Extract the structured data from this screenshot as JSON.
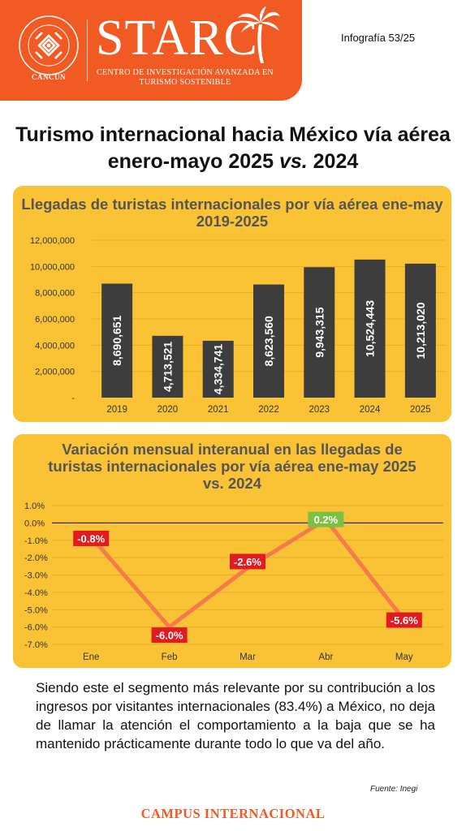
{
  "header": {
    "university_city": "CANCÚN",
    "brand_name": "STARC",
    "brand_subtitle": "CENTRO DE INVESTIGACIÓN AVANZADA EN TURISMO SOSTENIBLE",
    "infographic_number": "Infografía 53/25",
    "brand_color": "#f15a22"
  },
  "title_main": "Turismo internacional hacia México vía aérea enero-mayo 2025",
  "title_vs": "vs.",
  "title_year": "2024",
  "panel_color": "#f9c335",
  "chart_data": [
    {
      "type": "bar",
      "title": "Llegadas de turistas internacionales por vía aérea ene-may 2019-2025",
      "categories": [
        "2019",
        "2020",
        "2021",
        "2022",
        "2023",
        "2024",
        "2025"
      ],
      "values": [
        8690651,
        4713521,
        4334741,
        8623560,
        9943315,
        10524443,
        10213020
      ],
      "value_labels": [
        "8,690,651",
        "4,713,521",
        "4,334,741",
        "8,623,560",
        "9,943,315",
        "10,524,443",
        "10,213,020"
      ],
      "ylim": [
        0,
        12000000
      ],
      "yticks": [
        0,
        2000000,
        4000000,
        6000000,
        8000000,
        10000000,
        12000000
      ],
      "ytick_labels": [
        "-",
        "2,000,000",
        "4,000,000",
        "6,000,000",
        "8,000,000",
        "10,000,000",
        "12,000,000"
      ],
      "grid": true,
      "bar_color": "#3d3d3d"
    },
    {
      "type": "line",
      "title": "Variación mensual interanual en las llegadas de turistas internacionales por vía aérea ene-may 2025 vs. 2024",
      "categories": [
        "Ene",
        "Feb",
        "Mar",
        "Abr",
        "May"
      ],
      "values": [
        -0.8,
        -6.0,
        -2.6,
        0.2,
        -5.6
      ],
      "value_labels": [
        "-0.8%",
        "-6.0%",
        "-2.6%",
        "0.2%",
        "-5.6%"
      ],
      "ylim": [
        -7.0,
        1.0
      ],
      "yticks": [
        1.0,
        0.0,
        -1.0,
        -2.0,
        -3.0,
        -4.0,
        -5.0,
        -6.0,
        -7.0
      ],
      "ytick_labels": [
        "1.0%",
        "0.0%",
        "-1.0%",
        "-2.0%",
        "-3.0%",
        "-4.0%",
        "-5.0%",
        "-6.0%",
        "-7.0%"
      ],
      "grid": true,
      "line_color": "#f47c4b",
      "negative_label_color": "#e11b22",
      "positive_label_color": "#7ac143"
    }
  ],
  "body_text": "Siendo este el segmento más relevante por su contribución a los ingresos por visitantes internacionales (83.4%) a México, no deja de llamar la atención el comportamiento a la baja que se ha mantenido prácticamente durante todo lo que va del año.",
  "source": "Fuente: Inegi",
  "footer": "CAMPUS INTERNACIONAL"
}
